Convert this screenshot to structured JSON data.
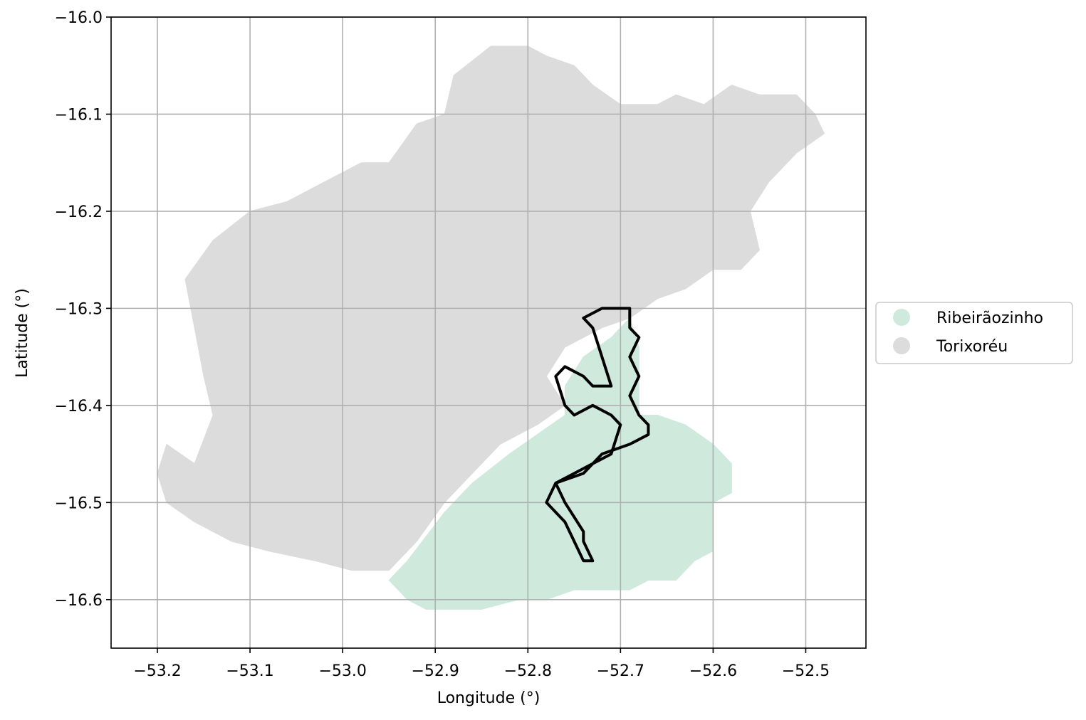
{
  "map": {
    "xlabel": "Longitude (°)",
    "ylabel": "Latitude (°)",
    "xlim": [
      -53.25,
      -52.435
    ],
    "ylim": [
      -16.65,
      -16.0
    ],
    "x_ticks": [
      -53.2,
      -53.1,
      -53.0,
      -52.9,
      -52.8,
      -52.7,
      -52.6,
      -52.5
    ],
    "y_ticks": [
      -16.0,
      -16.1,
      -16.2,
      -16.3,
      -16.4,
      -16.5,
      -16.6
    ],
    "x_tick_labels": [
      "−53.2",
      "−53.1",
      "−53.0",
      "−52.9",
      "−52.8",
      "−52.7",
      "−52.6",
      "−52.5"
    ],
    "y_tick_labels": [
      "−16.0",
      "−16.1",
      "−16.2",
      "−16.3",
      "−16.4",
      "−16.5",
      "−16.6"
    ],
    "grid": true,
    "legend_position": "outside-right",
    "legend": [
      {
        "label": "Ribeirãozinho",
        "color": "#cfeadd"
      },
      {
        "label": "Torixoréu",
        "color": "#dcdcdc"
      }
    ],
    "regions": [
      {
        "name": "Torixoréu",
        "color": "#dcdcdc",
        "coords": [
          [
            -53.16,
            -16.46
          ],
          [
            -53.19,
            -16.44
          ],
          [
            -53.2,
            -16.47
          ],
          [
            -53.19,
            -16.5
          ],
          [
            -53.16,
            -16.52
          ],
          [
            -53.12,
            -16.54
          ],
          [
            -53.08,
            -16.55
          ],
          [
            -53.03,
            -16.56
          ],
          [
            -52.99,
            -16.57
          ],
          [
            -52.95,
            -16.57
          ],
          [
            -52.92,
            -16.54
          ],
          [
            -52.89,
            -16.5
          ],
          [
            -52.86,
            -16.47
          ],
          [
            -52.83,
            -16.44
          ],
          [
            -52.79,
            -16.42
          ],
          [
            -52.76,
            -16.4
          ],
          [
            -52.78,
            -16.37
          ],
          [
            -52.76,
            -16.34
          ],
          [
            -52.72,
            -16.32
          ],
          [
            -52.69,
            -16.31
          ],
          [
            -52.66,
            -16.29
          ],
          [
            -52.63,
            -16.28
          ],
          [
            -52.6,
            -16.26
          ],
          [
            -52.57,
            -16.26
          ],
          [
            -52.55,
            -16.24
          ],
          [
            -52.56,
            -16.2
          ],
          [
            -52.54,
            -16.17
          ],
          [
            -52.51,
            -16.14
          ],
          [
            -52.48,
            -16.12
          ],
          [
            -52.49,
            -16.1
          ],
          [
            -52.51,
            -16.08
          ],
          [
            -52.55,
            -16.08
          ],
          [
            -52.58,
            -16.07
          ],
          [
            -52.61,
            -16.09
          ],
          [
            -52.64,
            -16.08
          ],
          [
            -52.66,
            -16.09
          ],
          [
            -52.7,
            -16.09
          ],
          [
            -52.73,
            -16.07
          ],
          [
            -52.75,
            -16.05
          ],
          [
            -52.78,
            -16.04
          ],
          [
            -52.8,
            -16.03
          ],
          [
            -52.84,
            -16.03
          ],
          [
            -52.88,
            -16.06
          ],
          [
            -52.89,
            -16.1
          ],
          [
            -52.92,
            -16.11
          ],
          [
            -52.95,
            -16.15
          ],
          [
            -52.98,
            -16.15
          ],
          [
            -53.02,
            -16.17
          ],
          [
            -53.06,
            -16.19
          ],
          [
            -53.1,
            -16.2
          ],
          [
            -53.14,
            -16.23
          ],
          [
            -53.17,
            -16.27
          ],
          [
            -53.16,
            -16.32
          ],
          [
            -53.15,
            -16.37
          ],
          [
            -53.14,
            -16.41
          ]
        ]
      },
      {
        "name": "Ribeirãozinho",
        "color": "#cfeadd",
        "coords": [
          [
            -52.93,
            -16.56
          ],
          [
            -52.89,
            -16.51
          ],
          [
            -52.86,
            -16.48
          ],
          [
            -52.82,
            -16.45
          ],
          [
            -52.79,
            -16.43
          ],
          [
            -52.76,
            -16.41
          ],
          [
            -52.76,
            -16.38
          ],
          [
            -52.74,
            -16.35
          ],
          [
            -52.71,
            -16.33
          ],
          [
            -52.69,
            -16.31
          ],
          [
            -52.68,
            -16.34
          ],
          [
            -52.68,
            -16.38
          ],
          [
            -52.68,
            -16.41
          ],
          [
            -52.66,
            -16.41
          ],
          [
            -52.63,
            -16.42
          ],
          [
            -52.6,
            -16.44
          ],
          [
            -52.58,
            -16.46
          ],
          [
            -52.58,
            -16.49
          ],
          [
            -52.6,
            -16.5
          ],
          [
            -52.6,
            -16.53
          ],
          [
            -52.6,
            -16.55
          ],
          [
            -52.62,
            -16.56
          ],
          [
            -52.64,
            -16.58
          ],
          [
            -52.67,
            -16.58
          ],
          [
            -52.69,
            -16.59
          ],
          [
            -52.72,
            -16.59
          ],
          [
            -52.75,
            -16.59
          ],
          [
            -52.78,
            -16.6
          ],
          [
            -52.81,
            -16.6
          ],
          [
            -52.85,
            -16.61
          ],
          [
            -52.88,
            -16.61
          ],
          [
            -52.91,
            -16.61
          ],
          [
            -52.93,
            -16.6
          ],
          [
            -52.95,
            -16.58
          ]
        ]
      }
    ],
    "outline": {
      "color": "#000000",
      "coords": [
        [
          -52.71,
          -16.3
        ],
        [
          -52.69,
          -16.3
        ],
        [
          -52.69,
          -16.32
        ],
        [
          -52.68,
          -16.33
        ],
        [
          -52.69,
          -16.35
        ],
        [
          -52.68,
          -16.37
        ],
        [
          -52.69,
          -16.39
        ],
        [
          -52.68,
          -16.41
        ],
        [
          -52.67,
          -16.42
        ],
        [
          -52.67,
          -16.43
        ],
        [
          -52.69,
          -16.44
        ],
        [
          -52.72,
          -16.45
        ],
        [
          -52.74,
          -16.47
        ],
        [
          -52.77,
          -16.48
        ],
        [
          -52.78,
          -16.5
        ],
        [
          -52.76,
          -16.52
        ],
        [
          -52.75,
          -16.54
        ],
        [
          -52.74,
          -16.56
        ],
        [
          -52.73,
          -16.56
        ],
        [
          -52.74,
          -16.54
        ],
        [
          -52.74,
          -16.53
        ],
        [
          -52.76,
          -16.5
        ],
        [
          -52.77,
          -16.48
        ],
        [
          -52.75,
          -16.47
        ],
        [
          -52.73,
          -16.46
        ],
        [
          -52.71,
          -16.45
        ],
        [
          -52.7,
          -16.42
        ],
        [
          -52.71,
          -16.41
        ],
        [
          -52.73,
          -16.4
        ],
        [
          -52.75,
          -16.41
        ],
        [
          -52.76,
          -16.4
        ],
        [
          -52.77,
          -16.37
        ],
        [
          -52.76,
          -16.36
        ],
        [
          -52.74,
          -16.37
        ],
        [
          -52.73,
          -16.38
        ],
        [
          -52.71,
          -16.38
        ],
        [
          -52.72,
          -16.35
        ],
        [
          -52.73,
          -16.32
        ],
        [
          -52.74,
          -16.31
        ],
        [
          -52.72,
          -16.3
        ]
      ]
    }
  }
}
